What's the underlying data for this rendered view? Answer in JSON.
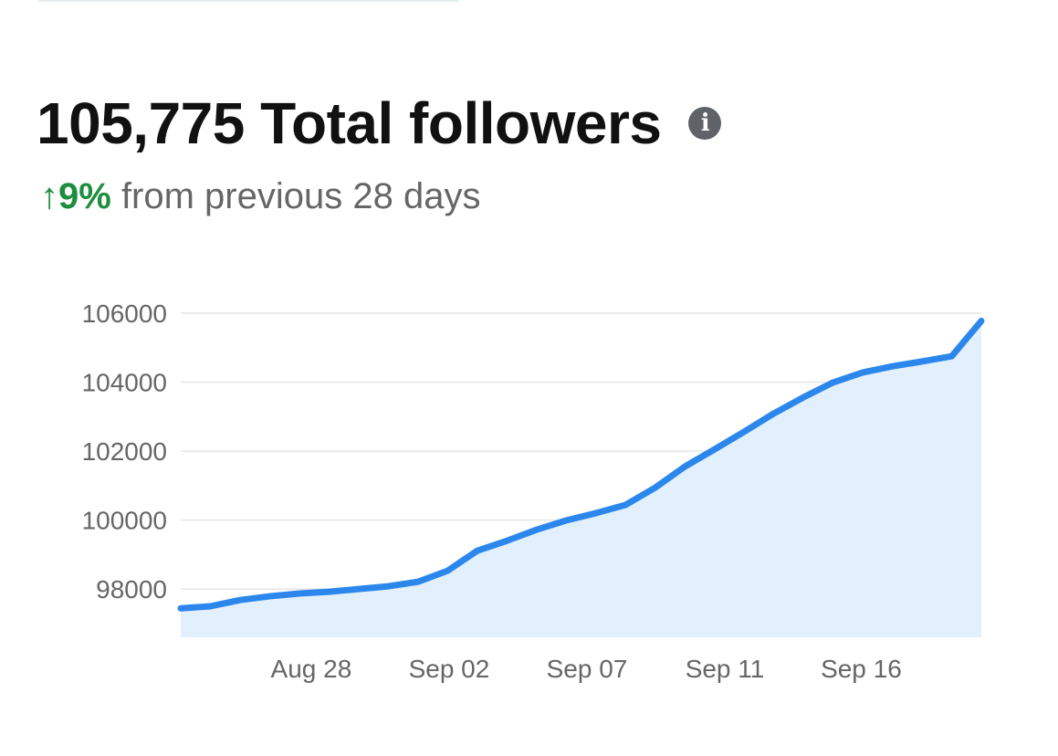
{
  "header": {
    "title": "105,775 Total followers",
    "info_icon": "info-icon",
    "change_arrow": "↑",
    "change_value": "9%",
    "change_text": "from previous 28 days"
  },
  "colors": {
    "line": "#2b87ec",
    "fill": "#e2effd",
    "positive": "#1e8e3e"
  },
  "chart_data": {
    "type": "area",
    "title": "Total followers",
    "xlabel": "",
    "ylabel": "",
    "x": [
      0,
      1,
      2,
      3,
      4,
      5,
      6,
      7,
      8,
      9,
      10,
      11,
      12,
      13,
      14,
      15,
      16,
      17,
      18,
      19,
      20,
      21,
      22,
      23,
      24,
      25,
      26,
      27
    ],
    "values": [
      97440,
      97500,
      97680,
      97790,
      97870,
      97920,
      98000,
      98080,
      98210,
      98530,
      99110,
      99400,
      99720,
      99990,
      100200,
      100440,
      100940,
      101550,
      102050,
      102560,
      103090,
      103560,
      103990,
      104280,
      104460,
      104600,
      104750,
      105775
    ],
    "xticks": [
      {
        "label": "Aug 28",
        "x": 4.4
      },
      {
        "label": "Sep 02",
        "x": 9.05
      },
      {
        "label": "Sep 07",
        "x": 13.7
      },
      {
        "label": "Sep 11",
        "x": 18.35
      },
      {
        "label": "Sep 16",
        "x": 22.95
      }
    ],
    "yticks": [
      98000,
      100000,
      102000,
      104000,
      106000
    ],
    "ylim": [
      96600,
      106000
    ],
    "grid": true,
    "legend": "none"
  }
}
